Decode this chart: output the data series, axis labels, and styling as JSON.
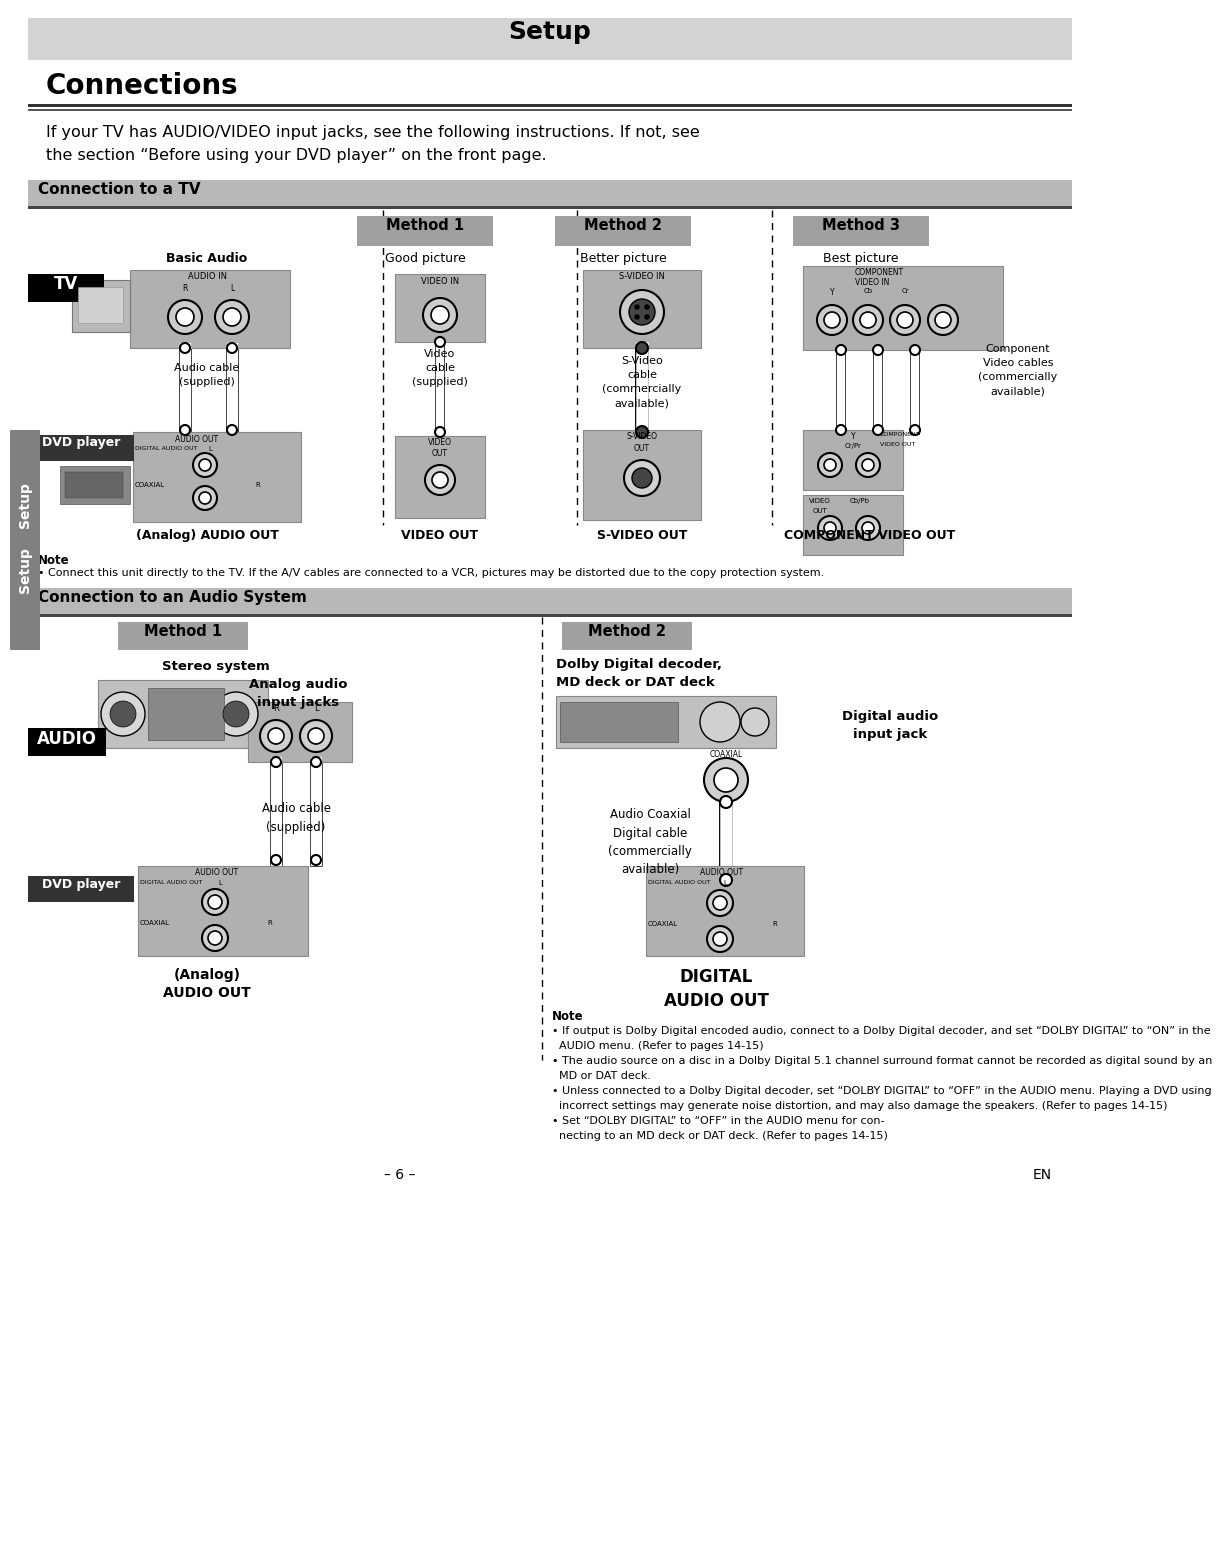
{
  "title": "Setup",
  "connections_title": "Connections",
  "intro_line1": "If your TV has AUDIO/VIDEO input jacks, see the following instructions. If not, see",
  "intro_line2": "the section “Before using your DVD player” on the front page.",
  "section1_title": "Connection to a TV",
  "section2_title": "Connection to an Audio System",
  "method1": "Method 1",
  "method2": "Method 2",
  "method3": "Method 3",
  "basic_audio": "Basic Audio",
  "good_picture": "Good picture",
  "better_picture": "Better picture",
  "best_picture": "Best picture",
  "tv_label": "TV",
  "dvd_label": "DVD player",
  "audio_label": "AUDIO",
  "audio_out_analog": "(Analog) AUDIO OUT",
  "video_out_label": "VIDEO OUT",
  "svideo_out_label": "S-VIDEO OUT",
  "component_out_label": "COMPONENT VIDEO OUT",
  "audio_cable_text": "Audio cable\n(supplied)",
  "video_cable_text": "Video\ncable\n(supplied)",
  "svideo_cable_text": "S-Video\ncable\n(commercially\navailable)",
  "component_cable_text": "Component\nVideo cables\n(commercially\navailable)",
  "note1_label": "Note",
  "note1_text": "• Connect this unit directly to the TV. If the A/V cables are connected to a VCR, pictures may be distorted due to the copy protection system.",
  "stereo_system": "Stereo system",
  "analog_audio_input": "Analog audio\ninput jacks",
  "audio_cable_text2": "Audio cable\n(supplied)",
  "analog_audio_out": "(Analog)\nAUDIO OUT",
  "method2_audio_title_l1": "Dolby Digital decoder,",
  "method2_audio_title_l2": "MD deck or DAT deck",
  "digital_audio_input": "Digital audio\ninput jack",
  "digital_cable_text": "Audio Coaxial\nDigital cable\n(commercially\navailable)",
  "digital_audio_out": "DIGITAL\nAUDIO OUT",
  "note2_label": "Note",
  "note2_l1": "• If output is Dolby Digital encoded audio, connect to a Dolby Digital decoder, and set “DOLBY DIGITAL” to “ON” in the",
  "note2_l1b": "  AUDIO menu. (Refer to pages 14-15)",
  "note2_l2": "• The audio source on a disc in a Dolby Digital 5.1 channel surround format cannot be recorded as digital sound by an",
  "note2_l2b": "  MD or DAT deck.",
  "note2_l3": "• Unless connected to a Dolby Digital decoder, set “DOLBY DIGITAL” to “OFF” in the AUDIO menu. Playing a DVD using",
  "note2_l3b": "  incorrect settings may generate noise distortion, and may also damage the speakers. (Refer to pages 14-15)",
  "note2_l4": "• Set “DOLBY DIGITAL” to “OFF” in the AUDIO menu for con-",
  "note2_l4b": "  necting to an MD deck or DAT deck. (Refer to pages 14-15)",
  "page_number": "– 6 –",
  "page_en": "EN"
}
